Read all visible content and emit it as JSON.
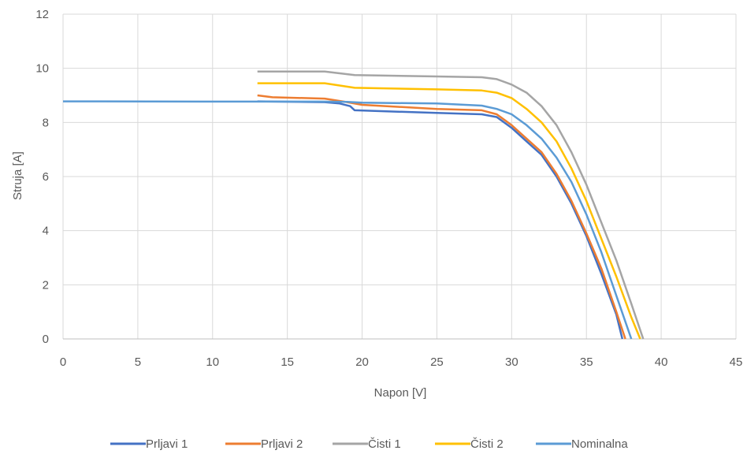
{
  "chart_data": {
    "type": "line",
    "title": "",
    "xlabel": "Napon [V]",
    "ylabel": "Struja [A]",
    "xlim": [
      0,
      45
    ],
    "ylim": [
      0,
      12
    ],
    "xticks": [
      0,
      5,
      10,
      15,
      20,
      25,
      30,
      35,
      40,
      45
    ],
    "yticks": [
      0,
      2,
      4,
      6,
      8,
      10,
      12
    ],
    "grid": true,
    "legend_position": "bottom",
    "series": [
      {
        "name": "Prljavi 1",
        "color": "#4472C4",
        "points": [
          [
            13.0,
            8.78
          ],
          [
            17.5,
            8.75
          ],
          [
            18.5,
            8.7
          ],
          [
            19.2,
            8.6
          ],
          [
            19.5,
            8.45
          ],
          [
            25,
            8.35
          ],
          [
            28,
            8.3
          ],
          [
            29,
            8.2
          ],
          [
            30,
            7.8
          ],
          [
            31,
            7.3
          ],
          [
            32,
            6.8
          ],
          [
            33,
            6.0
          ],
          [
            34,
            5.0
          ],
          [
            35,
            3.8
          ],
          [
            36,
            2.4
          ],
          [
            37,
            0.9
          ],
          [
            37.4,
            0.0
          ]
        ]
      },
      {
        "name": "Prljavi 2",
        "color": "#ED7D31",
        "points": [
          [
            13.0,
            9.0
          ],
          [
            14,
            8.93
          ],
          [
            17.5,
            8.88
          ],
          [
            19.0,
            8.75
          ],
          [
            20,
            8.65
          ],
          [
            25,
            8.5
          ],
          [
            28,
            8.45
          ],
          [
            29,
            8.3
          ],
          [
            30,
            7.9
          ],
          [
            31,
            7.4
          ],
          [
            32,
            6.9
          ],
          [
            33,
            6.1
          ],
          [
            34,
            5.1
          ],
          [
            35,
            3.9
          ],
          [
            36,
            2.6
          ],
          [
            37,
            1.0
          ],
          [
            37.6,
            0.0
          ]
        ]
      },
      {
        "name": "Čisti 1",
        "color": "#A5A5A5",
        "points": [
          [
            13.0,
            9.88
          ],
          [
            17.5,
            9.88
          ],
          [
            19.5,
            9.75
          ],
          [
            25,
            9.7
          ],
          [
            28,
            9.67
          ],
          [
            29,
            9.6
          ],
          [
            30,
            9.4
          ],
          [
            31,
            9.1
          ],
          [
            32,
            8.6
          ],
          [
            33,
            7.9
          ],
          [
            34,
            6.9
          ],
          [
            35,
            5.7
          ],
          [
            36,
            4.3
          ],
          [
            37,
            2.9
          ],
          [
            38,
            1.3
          ],
          [
            38.8,
            0.0
          ]
        ]
      },
      {
        "name": "Čisti 2",
        "color": "#FFC000",
        "points": [
          [
            13.0,
            9.45
          ],
          [
            17.5,
            9.45
          ],
          [
            19.5,
            9.28
          ],
          [
            25,
            9.22
          ],
          [
            28,
            9.18
          ],
          [
            29,
            9.1
          ],
          [
            30,
            8.9
          ],
          [
            31,
            8.5
          ],
          [
            32,
            8.0
          ],
          [
            33,
            7.3
          ],
          [
            34,
            6.3
          ],
          [
            35,
            5.1
          ],
          [
            36,
            3.7
          ],
          [
            37,
            2.3
          ],
          [
            38,
            0.8
          ],
          [
            38.6,
            0.0
          ]
        ]
      },
      {
        "name": "Nominalna",
        "color": "#5B9BD5",
        "points": [
          [
            0,
            8.78
          ],
          [
            10,
            8.77
          ],
          [
            17,
            8.77
          ],
          [
            19.0,
            8.76
          ],
          [
            20,
            8.73
          ],
          [
            25,
            8.7
          ],
          [
            28,
            8.62
          ],
          [
            29,
            8.5
          ],
          [
            30,
            8.3
          ],
          [
            31,
            7.9
          ],
          [
            32,
            7.4
          ],
          [
            33,
            6.7
          ],
          [
            34,
            5.8
          ],
          [
            35,
            4.6
          ],
          [
            36,
            3.2
          ],
          [
            37,
            1.6
          ],
          [
            38,
            0.0
          ]
        ]
      }
    ]
  }
}
